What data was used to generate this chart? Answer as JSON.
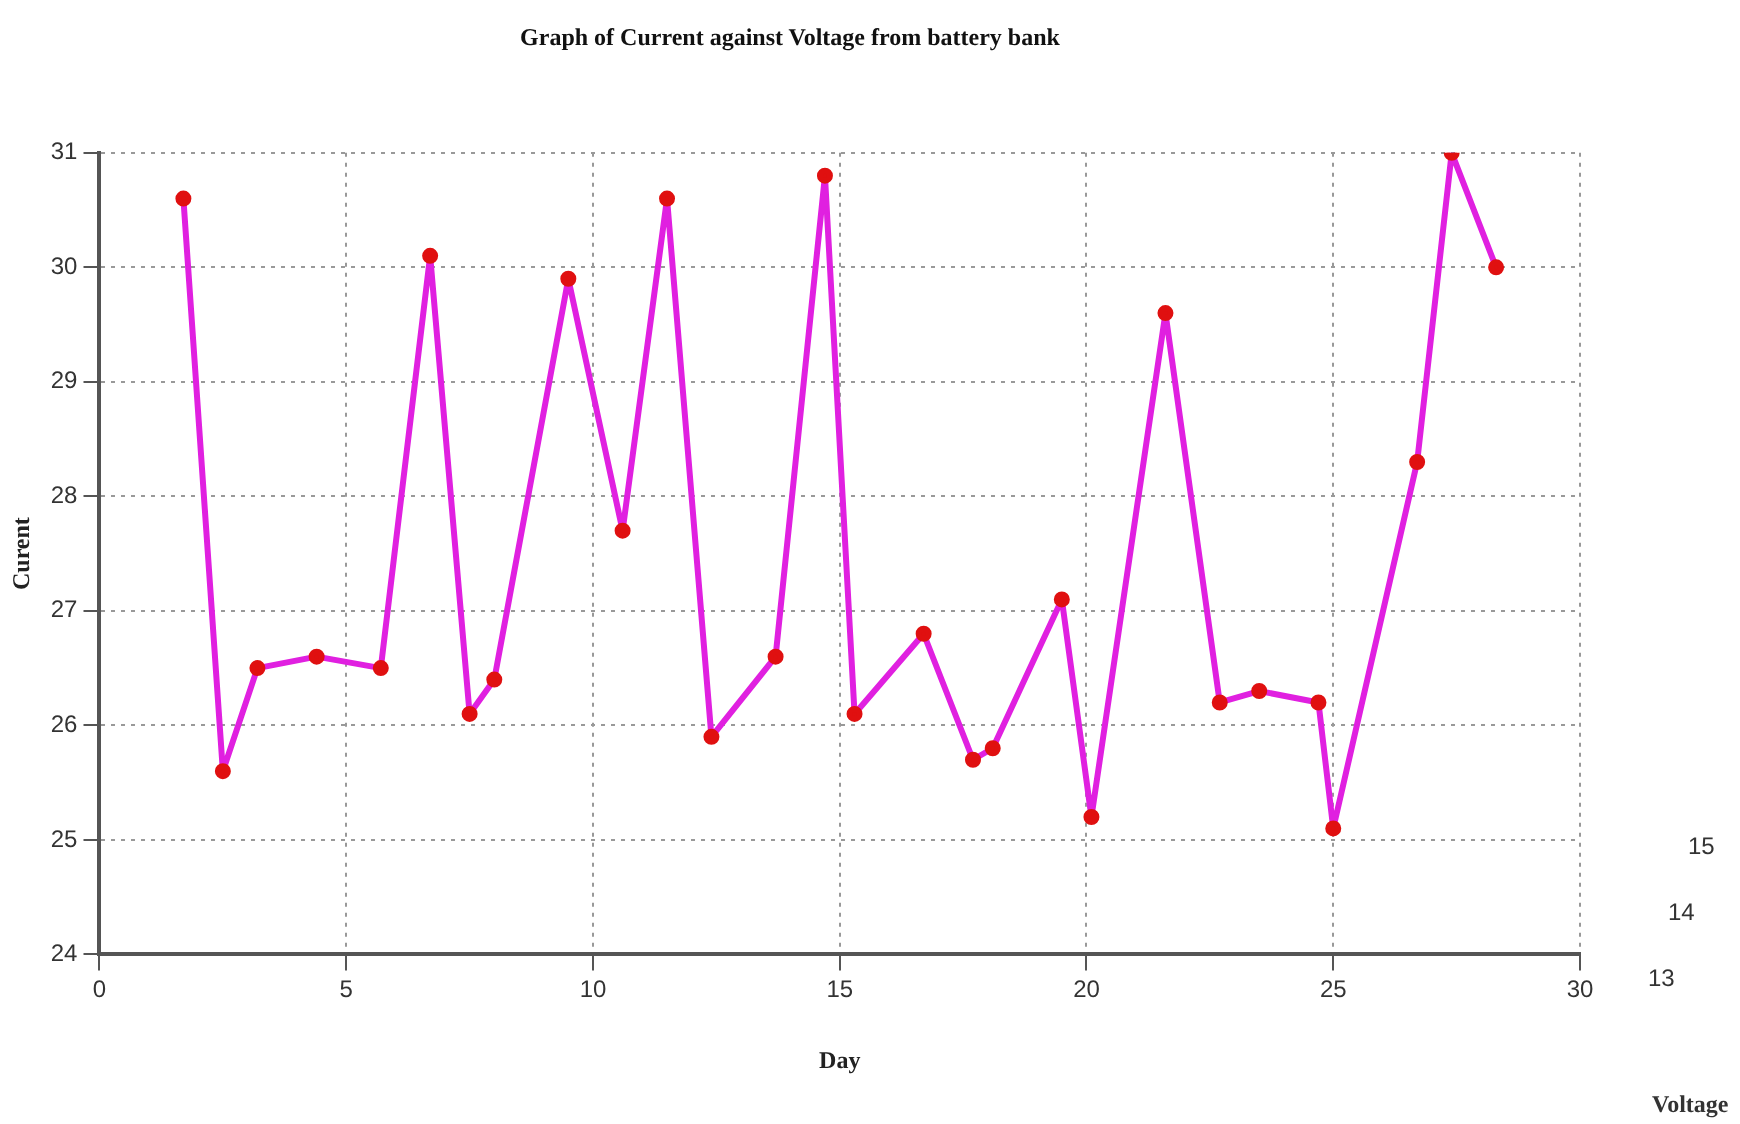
{
  "chart_data": {
    "type": "line",
    "title": "Graph of Current against Voltage from battery bank",
    "xlabel": "Day",
    "ylabel": "Curent",
    "annotations": [
      "15",
      "14",
      "13",
      "Voltage"
    ],
    "x": [
      1.7,
      2.5,
      3.2,
      4.4,
      5.7,
      6.7,
      7.5,
      8.0,
      9.5,
      10.6,
      11.5,
      12.4,
      13.7,
      14.7,
      15.3,
      16.7,
      17.7,
      18.1,
      19.5,
      20.1,
      21.6,
      22.7,
      23.5,
      24.7,
      25.0,
      26.7,
      27.4,
      28.3
    ],
    "series": [
      {
        "color": "#e020e0",
        "values": [
          30.6,
          25.6,
          26.5,
          26.6,
          26.5,
          30.1,
          26.1,
          26.4,
          29.9,
          27.7,
          30.6,
          25.9,
          26.6,
          30.8,
          26.1,
          26.8,
          25.7,
          25.8,
          27.1,
          25.2,
          29.6,
          26.2,
          26.3,
          26.2,
          25.1,
          28.3,
          31.0,
          30.0
        ]
      }
    ],
    "xlim": [
      0,
      30
    ],
    "xticks": [
      0,
      5,
      10,
      15,
      20,
      25,
      30
    ],
    "ylim": [
      24,
      31
    ],
    "yticks": [
      24,
      25,
      26,
      27,
      28,
      29,
      30,
      31
    ],
    "grid": true,
    "legend": false,
    "marker": "circle",
    "line_style": "solid"
  }
}
